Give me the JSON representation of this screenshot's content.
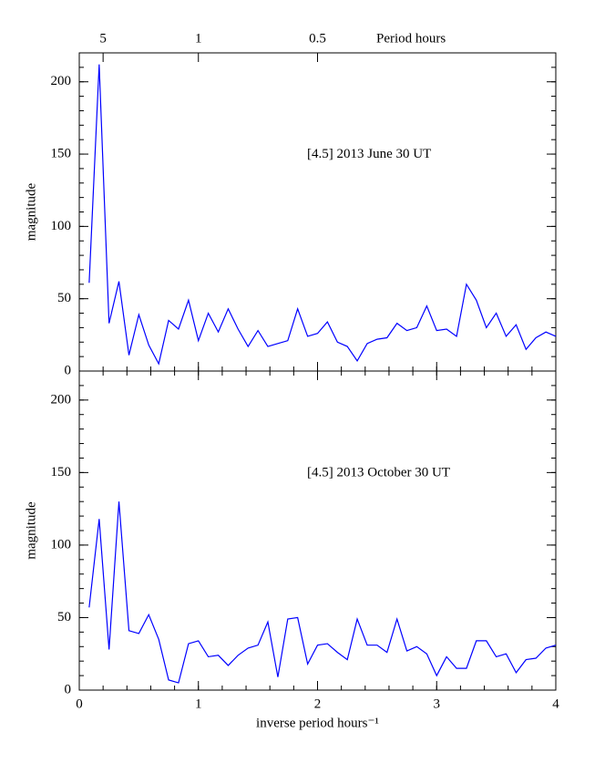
{
  "chart_data": [
    {
      "type": "line",
      "ylabel": "magnitude",
      "annotation": "[4.5] 2013 June 30 UT",
      "color": "#0000ff",
      "xlim": [
        0,
        4
      ],
      "ylim": [
        0,
        220
      ],
      "yticks": [
        0,
        50,
        100,
        150,
        200
      ],
      "x2ticks": [
        {
          "value": 0.2,
          "label": "5"
        },
        1,
        {
          "value": 2,
          "label": "0.5"
        }
      ],
      "x2label": "Period hours",
      "x": [
        0.083,
        0.167,
        0.25,
        0.333,
        0.417,
        0.5,
        0.583,
        0.667,
        0.75,
        0.833,
        0.917,
        1,
        1.083,
        1.167,
        1.25,
        1.333,
        1.417,
        1.5,
        1.583,
        1.667,
        1.75,
        1.833,
        1.917,
        2,
        2.083,
        2.167,
        2.25,
        2.333,
        2.417,
        2.5,
        2.583,
        2.667,
        2.75,
        2.833,
        2.917,
        3,
        3.083,
        3.167,
        3.25,
        3.333,
        3.417,
        3.5,
        3.583,
        3.667,
        3.75,
        3.833,
        3.917,
        4
      ],
      "values": [
        61,
        212,
        33,
        62,
        11,
        39,
        18,
        5,
        35,
        29,
        49,
        21,
        40,
        27,
        43,
        29,
        17,
        28,
        17,
        19,
        21,
        43,
        24,
        26,
        34,
        20,
        17,
        7,
        19,
        22,
        23,
        33,
        28,
        30,
        45,
        28,
        29,
        24,
        60,
        49,
        30,
        40,
        24,
        32,
        15,
        23,
        27,
        24
      ]
    },
    {
      "type": "line",
      "ylabel": "magnitude",
      "annotation": "[4.5] 2013 October 30 UT",
      "color": "#0000ff",
      "xlim": [
        0,
        4
      ],
      "ylim": [
        0,
        220
      ],
      "yticks": [
        0,
        50,
        100,
        150,
        200
      ],
      "xticks": [
        0,
        1,
        2,
        3,
        4
      ],
      "xlabel": "inverse period hours⁻¹",
      "x": [
        0.083,
        0.167,
        0.25,
        0.333,
        0.417,
        0.5,
        0.583,
        0.667,
        0.75,
        0.833,
        0.917,
        1,
        1.083,
        1.167,
        1.25,
        1.333,
        1.417,
        1.5,
        1.583,
        1.667,
        1.75,
        1.833,
        1.917,
        2,
        2.083,
        2.167,
        2.25,
        2.333,
        2.417,
        2.5,
        2.583,
        2.667,
        2.75,
        2.833,
        2.917,
        3,
        3.083,
        3.167,
        3.25,
        3.333,
        3.417,
        3.5,
        3.583,
        3.667,
        3.75,
        3.833,
        3.917,
        4
      ],
      "values": [
        57,
        118,
        28,
        130,
        41,
        39,
        52,
        35,
        7,
        5,
        32,
        34,
        23,
        24,
        17,
        24,
        29,
        31,
        47,
        9,
        49,
        50,
        18,
        31,
        32,
        26,
        21,
        49,
        31,
        31,
        26,
        49,
        27,
        30,
        25,
        10,
        23,
        15,
        15,
        34,
        34,
        23,
        25,
        12,
        21,
        22,
        29,
        31
      ]
    }
  ]
}
